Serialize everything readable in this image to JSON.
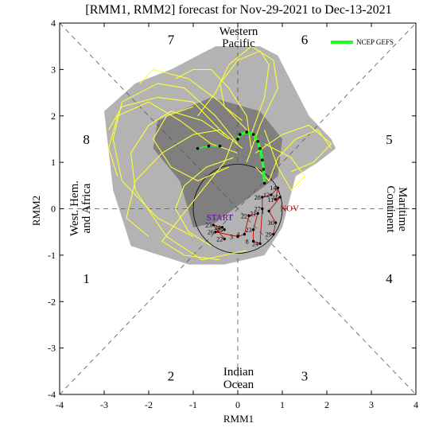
{
  "chart_data": {
    "type": "scatter",
    "title": "[RMM1, RMM2] forecast for Nov-29-2021 to Dec-13-2021",
    "xlabel": "RMM1",
    "ylabel": "RMM2",
    "xlim": [
      -4,
      4
    ],
    "ylim": [
      -4,
      4
    ],
    "xticks": [
      "-4",
      "-3",
      "-2",
      "-1",
      "0",
      "1",
      "2",
      "3",
      "4"
    ],
    "yticks": [
      "-4",
      "-3",
      "-2",
      "-1",
      "0",
      "1",
      "2",
      "3",
      "4"
    ],
    "phases": [
      {
        "label": "1",
        "x": -3.4,
        "y": -1.5
      },
      {
        "label": "2",
        "x": -1.5,
        "y": -3.6
      },
      {
        "label": "3",
        "x": 1.5,
        "y": -3.6
      },
      {
        "label": "4",
        "x": 3.4,
        "y": -1.5
      },
      {
        "label": "5",
        "x": 3.4,
        "y": 1.5
      },
      {
        "label": "6",
        "x": 1.5,
        "y": 3.65
      },
      {
        "label": "7",
        "x": -1.5,
        "y": 3.65
      },
      {
        "label": "8",
        "x": -3.4,
        "y": 1.5
      }
    ],
    "regions": {
      "western_pacific": [
        "Western",
        "Pacific"
      ],
      "indian_ocean": [
        "Indian",
        "Ocean"
      ],
      "maritime_continent": [
        "Maritime",
        "Continent"
      ],
      "west_hem_africa": [
        "West. Hem.",
        "and Africa"
      ]
    },
    "legend": {
      "label": "NCEP GEFS",
      "color": "#22ff22",
      "placement": "top-right"
    },
    "colors": {
      "outer_spread": "#b3b3b3",
      "inner_spread": "#7f7f7f",
      "members": "#ffff33",
      "ensemble_mean": "#22ff22",
      "observed": "#cc0000"
    },
    "start_label": "START",
    "month_label": "NOV",
    "outer_spread": [
      [
        -2.3,
        2.7
      ],
      [
        -1.5,
        3.0
      ],
      [
        -0.5,
        3.5
      ],
      [
        0.5,
        3.5
      ],
      [
        0.9,
        3.3
      ],
      [
        1.6,
        2.0
      ],
      [
        2.1,
        1.5
      ],
      [
        2.2,
        1.3
      ],
      [
        1.8,
        1.0
      ],
      [
        1.3,
        0.7
      ],
      [
        1.0,
        -0.4
      ],
      [
        0.6,
        -1.0
      ],
      [
        -0.3,
        -1.2
      ],
      [
        -1.1,
        -1.2
      ],
      [
        -2.4,
        -0.8
      ],
      [
        -2.8,
        0.4
      ],
      [
        -3.0,
        2.1
      ]
    ],
    "inner_spread": [
      [
        -1.8,
        1.9
      ],
      [
        -0.6,
        2.4
      ],
      [
        0.5,
        2.1
      ],
      [
        1.0,
        1.5
      ],
      [
        0.9,
        0.7
      ],
      [
        0.2,
        0.2
      ],
      [
        -0.5,
        -0.3
      ],
      [
        -1.0,
        -0.4
      ],
      [
        -1.3,
        0.6
      ],
      [
        -1.9,
        1.3
      ]
    ],
    "ensemble_mean": [
      [
        0.6,
        0.55
      ],
      [
        0.58,
        0.85
      ],
      [
        0.55,
        1.05
      ],
      [
        0.5,
        1.3
      ],
      [
        0.45,
        1.45
      ],
      [
        0.35,
        1.6
      ],
      [
        0.2,
        1.65
      ],
      [
        0.05,
        1.6
      ],
      [
        0.0,
        1.5
      ]
    ],
    "ensemble_mean_west": [
      [
        -0.4,
        1.35
      ],
      [
        -0.65,
        1.35
      ],
      [
        -0.9,
        1.3
      ]
    ],
    "observed": [
      {
        "day": "22",
        "x": -0.3,
        "y": -0.65
      },
      {
        "day": "23",
        "x": -0.55,
        "y": -0.35
      },
      {
        "day": "24",
        "x": -0.35,
        "y": -0.4
      },
      {
        "day": "25",
        "x": -0.3,
        "y": -0.45
      },
      {
        "day": "26",
        "x": -0.5,
        "y": -0.5
      },
      {
        "day": "3",
        "x": 0.0,
        "y": -0.6
      },
      {
        "day": "4",
        "x": 0.15,
        "y": -0.55
      },
      {
        "day": "22",
        "x": 0.25,
        "y": -0.15
      },
      {
        "day": "21",
        "x": 0.45,
        "y": -0.1
      },
      {
        "day": "23",
        "x": 0.35,
        "y": -0.45
      },
      {
        "day": "8",
        "x": 0.35,
        "y": -0.7
      },
      {
        "day": "24",
        "x": 0.5,
        "y": -0.75
      },
      {
        "day": "27",
        "x": 0.55,
        "y": -0.0
      },
      {
        "day": "28",
        "x": 0.55,
        "y": 0.25
      },
      {
        "day": "12",
        "x": 0.75,
        "y": 0.3
      },
      {
        "day": "14",
        "x": 0.9,
        "y": 0.45
      },
      {
        "day": "11",
        "x": 0.85,
        "y": 0.2
      },
      {
        "day": "15",
        "x": 0.95,
        "y": 0.25
      },
      {
        "day": "1",
        "x": 0.7,
        "y": -0.05
      },
      {
        "day": "30",
        "x": 0.85,
        "y": -0.3
      },
      {
        "day": "29",
        "x": 0.8,
        "y": -0.55
      }
    ],
    "members": [
      [
        [
          -0.2,
          1.5
        ],
        [
          -0.8,
          1.9
        ],
        [
          -1.5,
          2.1
        ],
        [
          -2.0,
          1.8
        ],
        [
          -2.4,
          1.2
        ],
        [
          -2.3,
          0.4
        ],
        [
          -1.6,
          -0.6
        ],
        [
          -0.8,
          -1.1
        ],
        [
          0.2,
          -0.9
        ]
      ],
      [
        [
          0.0,
          1.4
        ],
        [
          -0.5,
          2.0
        ],
        [
          -1.2,
          2.6
        ],
        [
          -1.8,
          2.7
        ],
        [
          -2.6,
          2.3
        ],
        [
          -2.8,
          1.5
        ],
        [
          -2.6,
          0.6
        ],
        [
          -1.8,
          -0.2
        ],
        [
          -1.0,
          -0.6
        ]
      ],
      [
        [
          0.3,
          1.6
        ],
        [
          0.6,
          2.4
        ],
        [
          0.7,
          3.1
        ],
        [
          0.5,
          3.4
        ],
        [
          0.0,
          3.2
        ],
        [
          -0.4,
          2.7
        ],
        [
          -0.3,
          2.2
        ],
        [
          0.1,
          1.9
        ]
      ],
      [
        [
          0.4,
          1.2
        ],
        [
          1.0,
          1.6
        ],
        [
          1.6,
          1.8
        ],
        [
          2.1,
          1.4
        ],
        [
          1.7,
          1.0
        ],
        [
          1.2,
          0.8
        ]
      ],
      [
        [
          0.2,
          1.0
        ],
        [
          0.5,
          1.8
        ],
        [
          0.9,
          2.6
        ],
        [
          0.8,
          3.2
        ],
        [
          0.3,
          3.5
        ],
        [
          -0.2,
          3.1
        ],
        [
          -0.5,
          2.5
        ],
        [
          -0.9,
          2.0
        ]
      ],
      [
        [
          0.1,
          1.3
        ],
        [
          -0.4,
          1.7
        ],
        [
          -1.0,
          1.6
        ],
        [
          -1.7,
          1.2
        ],
        [
          -2.3,
          0.6
        ],
        [
          -2.5,
          -0.2
        ],
        [
          -2.0,
          -0.6
        ]
      ],
      [
        [
          -0.1,
          1.1
        ],
        [
          -0.7,
          0.9
        ],
        [
          -1.2,
          0.5
        ],
        [
          -1.4,
          0.0
        ],
        [
          -1.1,
          -0.5
        ],
        [
          -0.6,
          -0.8
        ]
      ],
      [
        [
          0.6,
          1.4
        ],
        [
          1.2,
          1.1
        ],
        [
          1.5,
          0.7
        ],
        [
          1.2,
          0.4
        ],
        [
          0.9,
          0.9
        ],
        [
          0.6,
          1.7
        ]
      ],
      [
        [
          -0.3,
          1.6
        ],
        [
          -1.0,
          2.3
        ],
        [
          -1.8,
          2.4
        ],
        [
          -2.6,
          2.2
        ],
        [
          -2.9,
          1.7
        ]
      ],
      [
        [
          0.2,
          1.7
        ],
        [
          -0.4,
          2.3
        ],
        [
          -1.1,
          2.8
        ],
        [
          -1.9,
          3.0
        ],
        [
          -2.2,
          2.7
        ]
      ],
      [
        [
          0.0,
          1.2
        ],
        [
          -0.6,
          1.4
        ],
        [
          -1.3,
          1.9
        ],
        [
          -2.0,
          2.3
        ],
        [
          -2.7,
          2.0
        ],
        [
          -2.9,
          1.3
        ],
        [
          -2.7,
          0.7
        ]
      ],
      [
        [
          0.4,
          0.9
        ],
        [
          0.7,
          0.6
        ],
        [
          0.9,
          1.1
        ],
        [
          1.3,
          1.5
        ],
        [
          1.8,
          1.7
        ],
        [
          2.1,
          1.3
        ]
      ],
      [
        [
          -0.2,
          0.9
        ],
        [
          -0.9,
          0.6
        ],
        [
          -1.5,
          0.9
        ],
        [
          -1.9,
          1.5
        ],
        [
          -1.6,
          2.0
        ],
        [
          -1.0,
          2.2
        ]
      ],
      [
        [
          0.3,
          1.3
        ],
        [
          0.2,
          2.0
        ],
        [
          -0.2,
          2.6
        ],
        [
          -0.6,
          3.0
        ],
        [
          -1.0,
          3.0
        ],
        [
          -1.4,
          2.8
        ]
      ],
      [
        [
          -0.1,
          1.5
        ],
        [
          -0.3,
          1.0
        ],
        [
          -0.8,
          0.4
        ],
        [
          -1.3,
          -0.2
        ],
        [
          -1.7,
          -0.7
        ],
        [
          -1.2,
          -1.0
        ],
        [
          -0.4,
          -1.1
        ]
      ]
    ]
  }
}
